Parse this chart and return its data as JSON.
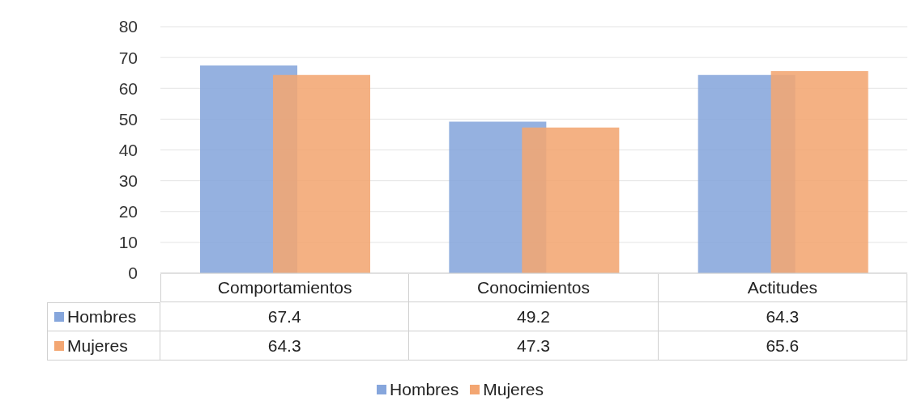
{
  "chart_data": {
    "type": "bar",
    "categories": [
      "Comportamientos",
      "Conocimientos",
      "Actitudes"
    ],
    "series": [
      {
        "name": "Hombres",
        "color": "#86a6dc",
        "values": [
          67.4,
          49.2,
          64.3
        ]
      },
      {
        "name": "Mujeres",
        "color": "#f3a672",
        "values": [
          64.3,
          47.3,
          65.6
        ]
      }
    ],
    "ylim": [
      0,
      80
    ],
    "yticks": [
      0,
      10,
      20,
      30,
      40,
      50,
      60,
      70,
      80
    ],
    "grid": "y",
    "legend": "bottom",
    "data_labels": true
  }
}
